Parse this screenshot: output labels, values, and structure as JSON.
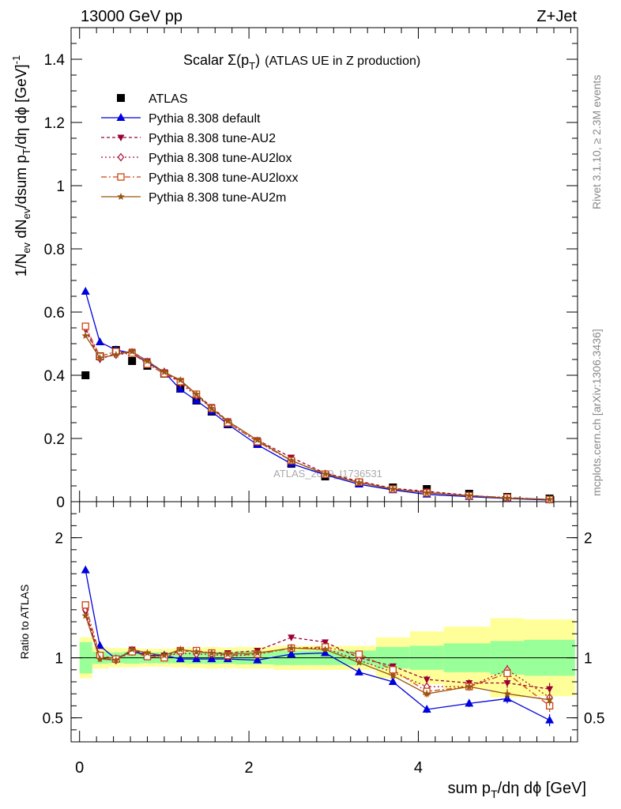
{
  "header": {
    "left": "13000 GeV pp",
    "right": "Z+Jet"
  },
  "title": {
    "main": "Scalar Σ(p",
    "sub": "T",
    "close": ")",
    "tail": "(ATLAS UE in Z production)"
  },
  "ylabel_top": "1/N_ev dN_ev/dsum p_T/dη dφ [GeV]^-1",
  "ylabel_bottom": "Ratio to ATLAS",
  "xlabel": "sum p_T/dη dφ [GeV]",
  "side_label_top": "Rivet 3.1.10, ≥ 2.3M events",
  "side_label_bottom": "mcplots.cern.ch [arXiv:1306.3436]",
  "watermark": "ATLAS_2019_I1736531",
  "colors": {
    "data": "#000000",
    "default": "#0000dd",
    "au2": "#990033",
    "au2lox": "#aa1133",
    "au2loxx": "#cc4411",
    "au2m": "#995511",
    "band_inner": "#99ff99",
    "band_outer": "#ffff99"
  },
  "chart_data": [
    {
      "type": "scatter",
      "panel": "main",
      "xlim": [
        -0.1,
        5.88
      ],
      "ylim": [
        0,
        1.5
      ],
      "yticks": [
        "0",
        "0.2",
        "0.4",
        "0.6",
        "0.8",
        "1",
        "1.2",
        "1.4"
      ],
      "x": [
        0.07,
        0.24,
        0.43,
        0.62,
        0.8,
        1.0,
        1.19,
        1.38,
        1.56,
        1.75,
        2.1,
        2.5,
        2.9,
        3.3,
        3.7,
        4.1,
        4.6,
        5.05,
        5.55
      ],
      "series": [
        {
          "name": "ATLAS",
          "key": "data",
          "marker": "square",
          "values": [
            0.4,
            0.46,
            0.48,
            0.445,
            0.43,
            0.405,
            0.36,
            0.32,
            0.285,
            0.245,
            0.185,
            0.12,
            0.08,
            0.06,
            0.045,
            0.04,
            0.025,
            0.015,
            0.01
          ]
        },
        {
          "name": "Pythia 8.308 default",
          "key": "default",
          "marker": "triangle-up",
          "values": [
            0.665,
            0.505,
            0.48,
            0.47,
            0.44,
            0.41,
            0.355,
            0.32,
            0.285,
            0.245,
            0.18,
            0.12,
            0.085,
            0.055,
            0.037,
            0.023,
            0.016,
            0.01,
            0.005
          ]
        },
        {
          "name": "Pythia 8.308 tune-AU2",
          "key": "au2",
          "marker": "triangle-down",
          "values": [
            0.545,
            0.45,
            0.47,
            0.475,
            0.445,
            0.41,
            0.38,
            0.34,
            0.3,
            0.255,
            0.195,
            0.14,
            0.09,
            0.065,
            0.042,
            0.033,
            0.02,
            0.012,
            0.007
          ]
        },
        {
          "name": "Pythia 8.308 tune-AU2lox",
          "key": "au2lox",
          "marker": "diamond",
          "values": [
            0.55,
            0.455,
            0.465,
            0.47,
            0.44,
            0.41,
            0.375,
            0.335,
            0.295,
            0.25,
            0.19,
            0.13,
            0.088,
            0.062,
            0.04,
            0.03,
            0.019,
            0.013,
            0.007
          ]
        },
        {
          "name": "Pythia 8.308 tune-AU2loxx",
          "key": "au2loxx",
          "marker": "open-square",
          "values": [
            0.555,
            0.46,
            0.475,
            0.47,
            0.435,
            0.405,
            0.38,
            0.34,
            0.295,
            0.25,
            0.19,
            0.13,
            0.087,
            0.062,
            0.04,
            0.028,
            0.019,
            0.013,
            0.007
          ]
        },
        {
          "name": "Pythia 8.308 tune-AU2m",
          "key": "au2m",
          "marker": "star",
          "values": [
            0.525,
            0.455,
            0.465,
            0.475,
            0.445,
            0.41,
            0.385,
            0.34,
            0.295,
            0.255,
            0.195,
            0.13,
            0.088,
            0.06,
            0.04,
            0.028,
            0.019,
            0.011,
            0.007
          ]
        }
      ],
      "legend": "top-left"
    },
    {
      "type": "line",
      "panel": "ratio",
      "xlim": [
        -0.1,
        5.88
      ],
      "ylim": [
        0.3,
        2.3
      ],
      "yticks": [
        "0.5",
        "1",
        "2"
      ],
      "xticks": [
        "0",
        "2",
        "4"
      ],
      "x": [
        0.07,
        0.24,
        0.43,
        0.62,
        0.8,
        1.0,
        1.19,
        1.38,
        1.56,
        1.75,
        2.1,
        2.5,
        2.9,
        3.3,
        3.7,
        4.1,
        4.6,
        5.05,
        5.55
      ],
      "band_edges": [
        0,
        0.15,
        0.34,
        0.52,
        0.71,
        0.9,
        1.09,
        1.28,
        1.47,
        1.66,
        1.85,
        2.3,
        2.7,
        3.1,
        3.5,
        3.9,
        4.3,
        4.85,
        5.25,
        5.85
      ],
      "band_inner": [
        0.13,
        0.05,
        0.045,
        0.05,
        0.045,
        0.045,
        0.045,
        0.05,
        0.05,
        0.05,
        0.055,
        0.06,
        0.06,
        0.06,
        0.09,
        0.1,
        0.12,
        0.14,
        0.15
      ],
      "band_outer": [
        0.17,
        0.09,
        0.08,
        0.08,
        0.075,
        0.075,
        0.08,
        0.085,
        0.09,
        0.085,
        0.09,
        0.1,
        0.1,
        0.1,
        0.17,
        0.22,
        0.26,
        0.33,
        0.32
      ],
      "series": [
        {
          "name": "Pythia 8.308 default",
          "key": "default",
          "marker": "triangle-up",
          "values": [
            1.73,
            1.1,
            0.99,
            1.06,
            1.02,
            1.02,
            0.99,
            0.99,
            0.99,
            0.99,
            0.98,
            1.03,
            1.04,
            0.88,
            0.8,
            0.57,
            0.62,
            0.66,
            0.48
          ],
          "errors": [
            0.02,
            0.01,
            0.01,
            0.01,
            0.01,
            0.01,
            0.01,
            0.01,
            0.01,
            0.01,
            0.01,
            0.01,
            0.01,
            0.015,
            0.02,
            0.03,
            0.03,
            0.04,
            0.05
          ]
        },
        {
          "name": "Pythia 8.308 tune-AU2",
          "key": "au2",
          "marker": "triangle-down",
          "values": [
            1.38,
            1.0,
            0.98,
            1.07,
            1.03,
            1.02,
            1.06,
            1.05,
            1.04,
            1.04,
            1.06,
            1.17,
            1.13,
            1.0,
            0.93,
            0.82,
            0.79,
            0.79,
            0.74
          ],
          "errors": [
            0.02,
            0.01,
            0.01,
            0.01,
            0.01,
            0.01,
            0.01,
            0.01,
            0.01,
            0.01,
            0.01,
            0.01,
            0.01,
            0.015,
            0.02,
            0.03,
            0.03,
            0.04,
            0.05
          ]
        },
        {
          "name": "Pythia 8.308 tune-AU2lox",
          "key": "au2lox",
          "marker": "diamond",
          "values": [
            1.4,
            1.0,
            0.98,
            1.05,
            1.02,
            1.01,
            1.04,
            1.03,
            1.03,
            1.01,
            1.03,
            1.08,
            1.08,
            0.98,
            0.88,
            0.76,
            0.76,
            0.9,
            0.67
          ],
          "errors": [
            0.02,
            0.01,
            0.01,
            0.01,
            0.01,
            0.01,
            0.01,
            0.01,
            0.01,
            0.01,
            0.01,
            0.01,
            0.01,
            0.015,
            0.02,
            0.03,
            0.03,
            0.04,
            0.05
          ]
        },
        {
          "name": "Pythia 8.308 tune-AU2loxx",
          "key": "au2loxx",
          "marker": "open-square",
          "values": [
            1.44,
            1.02,
            0.99,
            1.05,
            1.01,
            1.0,
            1.06,
            1.06,
            1.04,
            1.02,
            1.03,
            1.08,
            1.09,
            1.03,
            0.9,
            0.72,
            0.76,
            0.87,
            0.6
          ],
          "errors": [
            0.02,
            0.01,
            0.01,
            0.01,
            0.01,
            0.01,
            0.01,
            0.01,
            0.01,
            0.01,
            0.01,
            0.01,
            0.01,
            0.015,
            0.02,
            0.03,
            0.03,
            0.04,
            0.05
          ]
        },
        {
          "name": "Pythia 8.308 tune-AU2m",
          "key": "au2m",
          "marker": "star",
          "values": [
            1.35,
            0.99,
            0.98,
            1.07,
            1.04,
            1.02,
            1.07,
            1.05,
            1.04,
            1.03,
            1.04,
            1.08,
            1.07,
            0.96,
            0.85,
            0.7,
            0.76,
            0.7,
            0.65
          ],
          "errors": [
            0.02,
            0.01,
            0.01,
            0.01,
            0.01,
            0.01,
            0.01,
            0.01,
            0.01,
            0.01,
            0.01,
            0.01,
            0.01,
            0.015,
            0.02,
            0.03,
            0.03,
            0.04,
            0.05
          ]
        }
      ]
    }
  ]
}
